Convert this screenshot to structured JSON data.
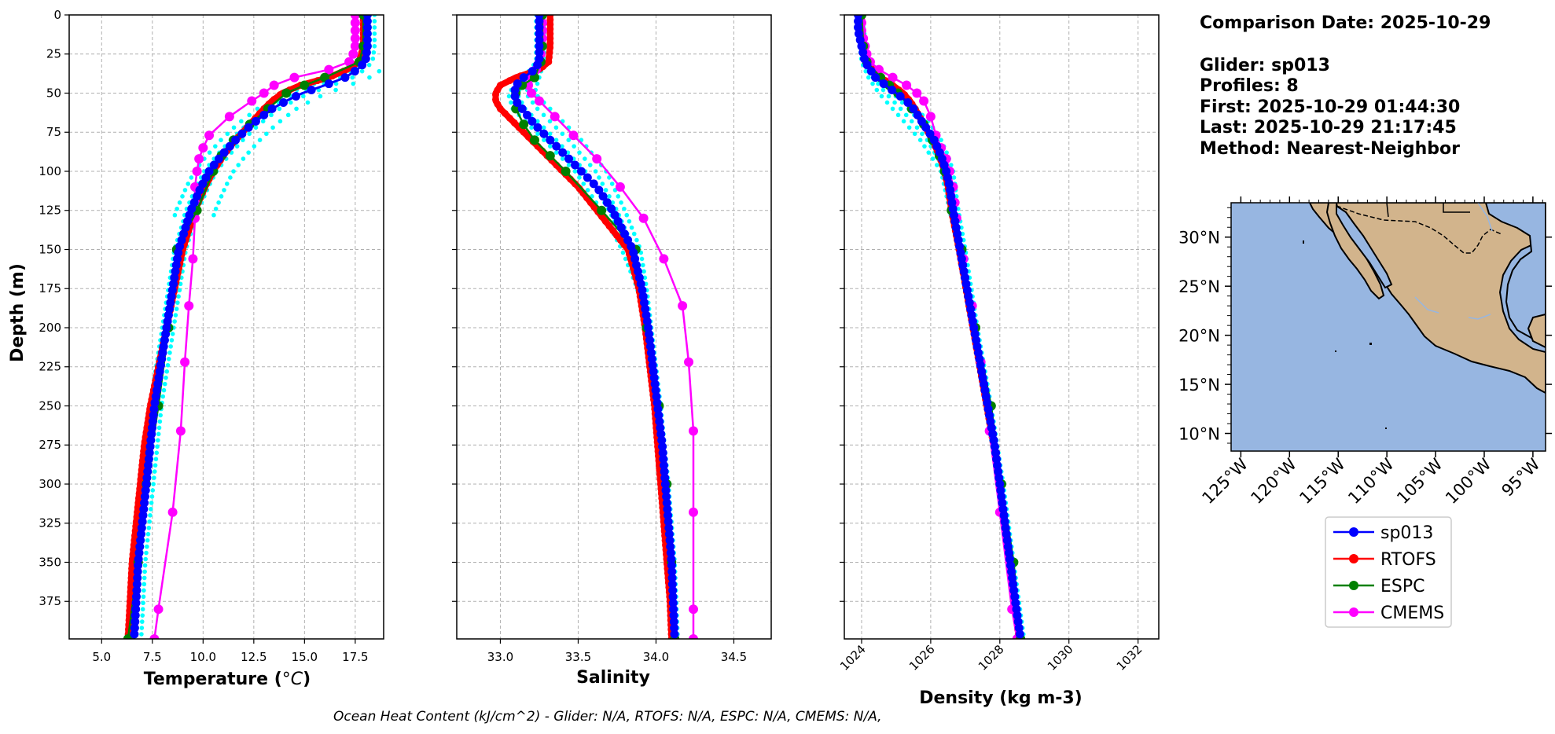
{
  "info": {
    "comparison_date": "Comparison Date: 2025-10-29",
    "glider": "Glider: sp013",
    "profiles": "Profiles: 8",
    "first": "First: 2025-10-29 01:44:30",
    "last": "Last: 2025-10-29 21:17:45",
    "method": "Method: Nearest-Neighbor"
  },
  "footer": "Ocean Heat Content (kJ/cm^2) - Glider: N/A,  RTOFS: N/A,  ESPC: N/A,  CMEMS: N/A,",
  "colors": {
    "sp013": "#0000ff",
    "RTOFS": "#ff0000",
    "ESPC": "#008000",
    "CMEMS": "#ff00ff",
    "glider_raw": "#00ffff",
    "land": "#d2b48c",
    "ocean": "#97b6e1"
  },
  "legend": [
    "sp013",
    "RTOFS",
    "ESPC",
    "CMEMS"
  ],
  "map": {
    "lat_ticks": [
      "30°N",
      "25°N",
      "20°N",
      "15°N",
      "10°N"
    ],
    "lon_ticks": [
      "125°W",
      "120°W",
      "115°W",
      "110°W",
      "105°W",
      "100°W",
      "95°W"
    ],
    "lat_values": [
      30,
      25,
      20,
      15,
      10
    ],
    "lon_values": [
      -125,
      -120,
      -115,
      -110,
      -105,
      -100,
      -95
    ]
  },
  "chart_data": [
    {
      "type": "line",
      "xlabel_main": "Temperature (",
      "xlabel_unit": "°C",
      "xlabel_close": ")",
      "ylabel": "Depth (m)",
      "xlim": [
        3.4,
        18.9
      ],
      "ylim": [
        399,
        0
      ],
      "xticks": [
        5.0,
        7.5,
        10.0,
        12.5,
        15.0,
        17.5
      ],
      "xtick_labels": [
        "5.0",
        "7.5",
        "10.0",
        "12.5",
        "15.0",
        "17.5"
      ],
      "yticks": [
        0,
        25,
        50,
        75,
        100,
        125,
        150,
        175,
        200,
        225,
        250,
        275,
        300,
        325,
        350,
        375
      ],
      "grid": true,
      "series": [
        {
          "name": "sp013",
          "depth": [
            0,
            10,
            20,
            30,
            35,
            40,
            45,
            50,
            55,
            60,
            70,
            80,
            90,
            100,
            110,
            125,
            150,
            175,
            200,
            225,
            250,
            275,
            300,
            325,
            350,
            375,
            399
          ],
          "values": [
            18.1,
            18.1,
            18.1,
            18.0,
            17.6,
            17.0,
            16.0,
            14.9,
            14.1,
            13.4,
            12.4,
            11.6,
            10.9,
            10.3,
            9.9,
            9.4,
            8.8,
            8.5,
            8.2,
            7.9,
            7.6,
            7.4,
            7.2,
            7.0,
            6.8,
            6.7,
            6.6
          ]
        },
        {
          "name": "RTOFS",
          "depth": [
            0,
            10,
            20,
            30,
            35,
            40,
            45,
            50,
            55,
            60,
            70,
            80,
            90,
            100,
            110,
            125,
            150,
            175,
            200,
            225,
            250,
            275,
            300,
            325,
            350,
            375,
            399
          ],
          "values": [
            17.9,
            17.9,
            17.9,
            17.7,
            17.1,
            16.2,
            14.8,
            13.9,
            13.4,
            13.0,
            12.3,
            11.6,
            11.0,
            10.5,
            10.1,
            9.6,
            9.0,
            8.6,
            8.2,
            7.8,
            7.4,
            7.1,
            6.9,
            6.7,
            6.5,
            6.4,
            6.3
          ]
        },
        {
          "name": "ESPC",
          "depth": [
            0,
            20,
            30,
            40,
            45,
            50,
            60,
            70,
            80,
            90,
            100,
            125,
            150,
            200,
            250,
            300,
            350,
            399
          ],
          "values": [
            17.9,
            17.9,
            17.7,
            16.0,
            15.0,
            14.1,
            13.2,
            12.3,
            11.5,
            10.9,
            10.5,
            9.7,
            8.7,
            8.3,
            7.8,
            7.2,
            6.8,
            6.3
          ]
        },
        {
          "name": "CMEMS",
          "depth": [
            0,
            5,
            10,
            15,
            20,
            25,
            30,
            35,
            40,
            45,
            50,
            55,
            65,
            77,
            85,
            92,
            100,
            110,
            120,
            130,
            156,
            186,
            222,
            266,
            318,
            380,
            399
          ],
          "values": [
            17.5,
            17.5,
            17.5,
            17.5,
            17.5,
            17.4,
            17.2,
            16.2,
            14.5,
            13.5,
            13.0,
            12.4,
            11.3,
            10.3,
            10.0,
            9.8,
            9.7,
            9.6,
            9.6,
            9.6,
            9.5,
            9.3,
            9.1,
            8.9,
            8.5,
            7.8,
            7.6
          ]
        }
      ]
    },
    {
      "type": "line",
      "xlabel": "Salinity",
      "xlim": [
        32.72,
        34.74
      ],
      "ylim": [
        399,
        0
      ],
      "xticks": [
        33.0,
        33.5,
        34.0,
        34.5
      ],
      "xtick_labels": [
        "33.0",
        "33.5",
        "34.0",
        "34.5"
      ],
      "grid": true,
      "series": [
        {
          "name": "sp013",
          "depth": [
            0,
            10,
            20,
            30,
            35,
            40,
            45,
            50,
            55,
            60,
            70,
            80,
            90,
            100,
            110,
            125,
            150,
            175,
            200,
            225,
            250,
            275,
            300,
            325,
            350,
            375,
            399
          ],
          "values": [
            33.25,
            33.25,
            33.25,
            33.25,
            33.22,
            33.15,
            33.1,
            33.09,
            33.1,
            33.14,
            33.22,
            33.32,
            33.42,
            33.52,
            33.62,
            33.72,
            33.85,
            33.91,
            33.95,
            33.98,
            34.01,
            34.04,
            34.06,
            34.08,
            34.1,
            34.11,
            34.12
          ]
        },
        {
          "name": "RTOFS",
          "depth": [
            0,
            10,
            20,
            30,
            35,
            40,
            45,
            50,
            55,
            60,
            65,
            70,
            80,
            90,
            100,
            110,
            125,
            150,
            175,
            200,
            225,
            250,
            275,
            300,
            325,
            350,
            375,
            399
          ],
          "values": [
            33.32,
            33.32,
            33.32,
            33.31,
            33.25,
            33.1,
            33.0,
            32.97,
            32.97,
            33.0,
            33.05,
            33.1,
            33.2,
            33.3,
            33.4,
            33.5,
            33.62,
            33.82,
            33.89,
            33.93,
            33.96,
            33.99,
            34.01,
            34.03,
            34.05,
            34.07,
            34.09,
            34.1
          ]
        },
        {
          "name": "ESPC",
          "depth": [
            0,
            20,
            30,
            40,
            45,
            50,
            60,
            70,
            80,
            90,
            100,
            125,
            150,
            200,
            250,
            300,
            350,
            399
          ],
          "values": [
            33.27,
            33.27,
            33.26,
            33.22,
            33.14,
            33.1,
            33.1,
            33.15,
            33.22,
            33.32,
            33.42,
            33.65,
            33.87,
            33.94,
            34.02,
            34.07,
            34.1,
            34.12
          ]
        },
        {
          "name": "CMEMS",
          "depth": [
            0,
            5,
            10,
            15,
            20,
            25,
            30,
            35,
            40,
            45,
            50,
            55,
            65,
            77,
            92,
            110,
            130,
            156,
            186,
            222,
            266,
            318,
            380,
            399
          ],
          "values": [
            33.27,
            33.27,
            33.27,
            33.27,
            33.27,
            33.26,
            33.25,
            33.23,
            33.2,
            33.18,
            33.2,
            33.25,
            33.35,
            33.47,
            33.62,
            33.77,
            33.92,
            34.05,
            34.17,
            34.21,
            34.24,
            34.24,
            34.24,
            34.24
          ]
        },
        {
          "name": "glider_raw_min",
          "depth": [
            0,
            30,
            40,
            50,
            60,
            70,
            80,
            90,
            100,
            125,
            150,
            175,
            200,
            250,
            300,
            350,
            399
          ],
          "values": [
            33.23,
            33.23,
            33.15,
            33.05,
            33.08,
            33.18,
            33.28,
            33.38,
            33.48,
            33.65,
            33.78,
            33.88,
            33.93,
            33.99,
            34.05,
            34.09,
            34.11
          ]
        },
        {
          "name": "glider_raw_max",
          "depth": [
            0,
            30,
            40,
            50,
            60,
            70,
            80,
            90,
            100,
            125,
            150,
            175,
            200,
            250,
            300,
            350,
            399
          ],
          "values": [
            33.28,
            33.28,
            33.25,
            33.22,
            33.32,
            33.42,
            33.52,
            33.6,
            33.68,
            33.8,
            33.9,
            33.94,
            33.97,
            34.03,
            34.08,
            34.12,
            34.14
          ]
        }
      ]
    },
    {
      "type": "line",
      "xlabel": "Density (kg m-3)",
      "xlim": [
        1023.5,
        1032.6
      ],
      "ylim": [
        399,
        0
      ],
      "xticks": [
        1024,
        1026,
        1028,
        1030,
        1032
      ],
      "xtick_labels": [
        "1024",
        "1026",
        "1028",
        "1030",
        "1032"
      ],
      "grid": true,
      "series": [
        {
          "name": "sp013",
          "depth": [
            0,
            10,
            20,
            30,
            40,
            45,
            50,
            55,
            60,
            70,
            80,
            90,
            100,
            110,
            125,
            150,
            175,
            200,
            225,
            250,
            275,
            300,
            325,
            350,
            375,
            399
          ],
          "values": [
            1023.9,
            1023.9,
            1024.0,
            1024.1,
            1024.4,
            1024.7,
            1025.0,
            1025.3,
            1025.5,
            1025.8,
            1026.1,
            1026.3,
            1026.45,
            1026.55,
            1026.65,
            1026.85,
            1027.05,
            1027.25,
            1027.45,
            1027.65,
            1027.85,
            1028.0,
            1028.15,
            1028.3,
            1028.45,
            1028.6
          ]
        },
        {
          "name": "RTOFS",
          "depth": [
            0,
            10,
            20,
            30,
            40,
            45,
            50,
            55,
            60,
            70,
            80,
            90,
            100,
            110,
            125,
            150,
            175,
            200,
            225,
            250,
            275,
            300,
            325,
            350,
            375,
            399
          ],
          "values": [
            1024.0,
            1024.0,
            1024.05,
            1024.15,
            1024.55,
            1024.9,
            1025.2,
            1025.4,
            1025.55,
            1025.8,
            1026.05,
            1026.25,
            1026.4,
            1026.5,
            1026.6,
            1026.82,
            1027.02,
            1027.22,
            1027.42,
            1027.62,
            1027.82,
            1027.98,
            1028.13,
            1028.28,
            1028.43,
            1028.55
          ]
        },
        {
          "name": "ESPC",
          "depth": [
            0,
            20,
            30,
            40,
            45,
            50,
            60,
            70,
            80,
            90,
            100,
            125,
            150,
            200,
            250,
            300,
            350,
            399
          ],
          "values": [
            1024.0,
            1024.05,
            1024.15,
            1024.55,
            1024.8,
            1025.05,
            1025.45,
            1025.8,
            1026.05,
            1026.25,
            1026.4,
            1026.6,
            1026.9,
            1027.3,
            1027.75,
            1028.05,
            1028.4,
            1028.6
          ]
        },
        {
          "name": "CMEMS",
          "depth": [
            0,
            5,
            10,
            15,
            20,
            25,
            30,
            35,
            40,
            45,
            50,
            55,
            65,
            77,
            85,
            92,
            100,
            110,
            120,
            130,
            156,
            186,
            222,
            266,
            318,
            380,
            399
          ],
          "values": [
            1024.0,
            1024.0,
            1024.0,
            1024.05,
            1024.1,
            1024.15,
            1024.25,
            1024.5,
            1024.9,
            1025.3,
            1025.6,
            1025.8,
            1026.0,
            1026.15,
            1026.3,
            1026.45,
            1026.55,
            1026.65,
            1026.7,
            1026.75,
            1026.95,
            1027.2,
            1027.45,
            1027.7,
            1028.0,
            1028.35,
            1028.5
          ]
        },
        {
          "name": "glider_raw_min",
          "depth": [
            0,
            30,
            40,
            50,
            60,
            70,
            80,
            90,
            100,
            125,
            150,
            200,
            250,
            300,
            350,
            399
          ],
          "values": [
            1023.85,
            1024.0,
            1024.2,
            1024.5,
            1024.9,
            1025.3,
            1025.7,
            1026.0,
            1026.3,
            1026.55,
            1026.8,
            1027.2,
            1027.6,
            1027.95,
            1028.25,
            1028.55
          ]
        },
        {
          "name": "glider_raw_max",
          "depth": [
            0,
            30,
            40,
            50,
            60,
            70,
            80,
            90,
            100,
            125,
            150,
            200,
            250,
            300,
            350,
            399
          ],
          "values": [
            1024.0,
            1024.2,
            1024.6,
            1025.1,
            1025.6,
            1026.0,
            1026.3,
            1026.5,
            1026.65,
            1026.8,
            1027.0,
            1027.35,
            1027.75,
            1028.1,
            1028.4,
            1028.7
          ]
        }
      ]
    }
  ]
}
